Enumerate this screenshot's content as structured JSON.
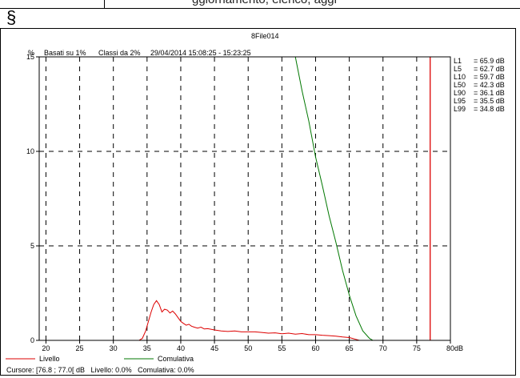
{
  "page": {
    "top_fragment": "ggiornamento, elenco, aggi",
    "section_symbol": "§"
  },
  "chart_header": {
    "file_title": "8File014",
    "y_unit": "%",
    "header_basis": "Basati su 1%",
    "header_classes": "Classi da 2%",
    "header_datetime": "29/04/2014 15:08:25 - 15:23:25"
  },
  "chart_data": {
    "type": "line",
    "title": "8File014",
    "xlabel": "dB",
    "ylabel": "%",
    "xlim": [
      19,
      80
    ],
    "ylim": [
      0,
      15
    ],
    "x_ticks": [
      "20",
      "25",
      "30",
      "35",
      "40",
      "45",
      "50",
      "55",
      "60",
      "65",
      "70",
      "75",
      "80"
    ],
    "y_ticks": [
      "0",
      "5",
      "10",
      "15"
    ],
    "x_tick_values": [
      20,
      25,
      30,
      35,
      40,
      45,
      50,
      55,
      60,
      65,
      70,
      75,
      80
    ],
    "y_tick_values": [
      0,
      5,
      10,
      15
    ],
    "grid": true,
    "legend_position": "bottom-left",
    "series": [
      {
        "name": "Livello",
        "color": "#dd0000",
        "points": [
          [
            19,
            0
          ],
          [
            33.8,
            0
          ],
          [
            34.3,
            0.1
          ],
          [
            34.8,
            0.5
          ],
          [
            35.2,
            1.0
          ],
          [
            35.6,
            1.5
          ],
          [
            36.0,
            1.9
          ],
          [
            36.4,
            2.1
          ],
          [
            36.8,
            1.9
          ],
          [
            37.2,
            1.5
          ],
          [
            37.6,
            1.65
          ],
          [
            38.0,
            1.6
          ],
          [
            38.4,
            1.45
          ],
          [
            38.8,
            1.55
          ],
          [
            39.2,
            1.4
          ],
          [
            39.6,
            1.2
          ],
          [
            40.0,
            1.0
          ],
          [
            40.4,
            0.9
          ],
          [
            40.8,
            0.8
          ],
          [
            41.2,
            0.85
          ],
          [
            41.6,
            0.75
          ],
          [
            42.0,
            0.7
          ],
          [
            42.5,
            0.65
          ],
          [
            43.0,
            0.7
          ],
          [
            43.5,
            0.6
          ],
          [
            44.0,
            0.62
          ],
          [
            45.0,
            0.55
          ],
          [
            46.0,
            0.5
          ],
          [
            47.0,
            0.47
          ],
          [
            48.0,
            0.5
          ],
          [
            49.0,
            0.45
          ],
          [
            50.0,
            0.45
          ],
          [
            51.0,
            0.45
          ],
          [
            52.0,
            0.42
          ],
          [
            53.0,
            0.38
          ],
          [
            54.0,
            0.4
          ],
          [
            55.0,
            0.35
          ],
          [
            56.0,
            0.38
          ],
          [
            57.0,
            0.33
          ],
          [
            58.0,
            0.36
          ],
          [
            59.0,
            0.3
          ],
          [
            60.0,
            0.3
          ],
          [
            61.0,
            0.27
          ],
          [
            62.0,
            0.25
          ],
          [
            63.0,
            0.22
          ],
          [
            64.0,
            0.18
          ],
          [
            65.0,
            0.15
          ],
          [
            65.5,
            0.1
          ],
          [
            66.0,
            0.05
          ],
          [
            66.5,
            0
          ],
          [
            80,
            0
          ]
        ]
      },
      {
        "name": "Comulativa",
        "color": "#007700",
        "points": [
          [
            19,
            15
          ],
          [
            57.0,
            15
          ],
          [
            58.0,
            13.2
          ],
          [
            59.0,
            11.6
          ],
          [
            60.0,
            9.7
          ],
          [
            61.0,
            8.2
          ],
          [
            62.0,
            6.6
          ],
          [
            63.0,
            5.2
          ],
          [
            64.0,
            3.7
          ],
          [
            65.0,
            2.4
          ],
          [
            66.0,
            1.3
          ],
          [
            67.0,
            0.5
          ],
          [
            68.0,
            0.1
          ],
          [
            68.5,
            0
          ],
          [
            80,
            0
          ]
        ]
      }
    ],
    "cursor": {
      "x": 77.0,
      "color": "#dd0000"
    },
    "percentiles": [
      {
        "label": "L1",
        "value": "= 65.9 dB"
      },
      {
        "label": "L5",
        "value": "= 62.7 dB"
      },
      {
        "label": "L10",
        "value": "= 59.7 dB"
      },
      {
        "label": "L50",
        "value": "= 42.3 dB"
      },
      {
        "label": "L90",
        "value": "= 36.1 dB"
      },
      {
        "label": "L95",
        "value": "= 35.5 dB"
      },
      {
        "label": "L99",
        "value": "= 34.8 dB"
      }
    ],
    "status_line": "Cursore: [76.8 ; 77.0[ dB   Livello: 0.0%   Comulativa: 0.0%"
  }
}
